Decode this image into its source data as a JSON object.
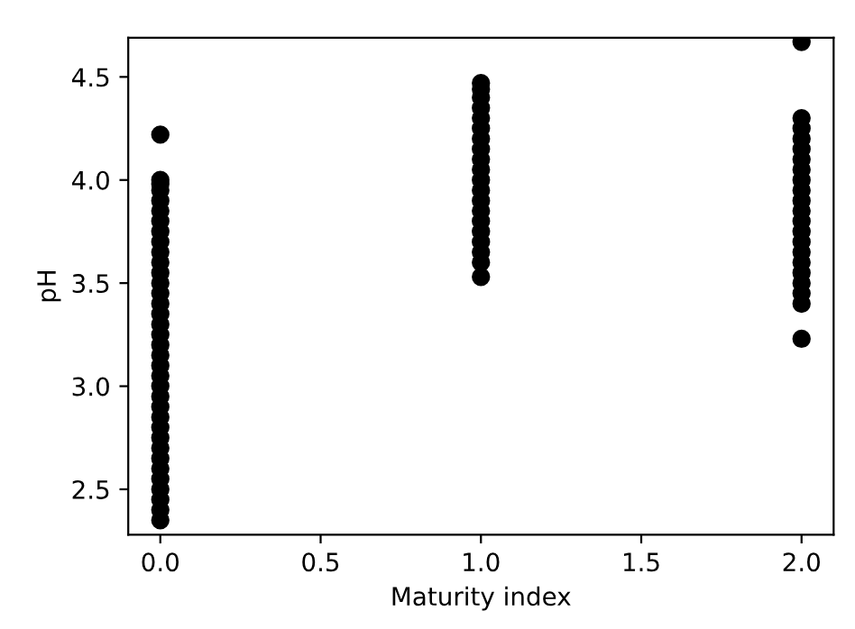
{
  "chart_data": {
    "type": "scatter",
    "xlabel": "Maturity index",
    "ylabel": "pH",
    "xlim": [
      -0.1,
      2.1
    ],
    "ylim": [
      2.28,
      4.69
    ],
    "xticks": [
      {
        "value": 0,
        "label": "0.0"
      },
      {
        "value": 0.5,
        "label": "0.5"
      },
      {
        "value": 1,
        "label": "1.0"
      },
      {
        "value": 1.5,
        "label": "1.5"
      },
      {
        "value": 2,
        "label": "2.0"
      }
    ],
    "yticks": [
      {
        "value": 2.5,
        "label": "2.5"
      },
      {
        "value": 3,
        "label": "3.0"
      },
      {
        "value": 3.5,
        "label": "3.5"
      },
      {
        "value": 4,
        "label": "4.0"
      },
      {
        "value": 4.5,
        "label": "4.5"
      }
    ],
    "marker": "circle",
    "grid": false,
    "legend": false,
    "series": [
      {
        "color": "#000000",
        "x": [
          0,
          0,
          0,
          0,
          0,
          0,
          0,
          0,
          0,
          0,
          0,
          0,
          0,
          0,
          0,
          0,
          0,
          0,
          0,
          0,
          0,
          0,
          0,
          0,
          0,
          0,
          0,
          0,
          0,
          0,
          0,
          0,
          0,
          0,
          0,
          0,
          1,
          1,
          1,
          1,
          1,
          1,
          1,
          1,
          1,
          1,
          1,
          1,
          1,
          1,
          1,
          1,
          1,
          1,
          1,
          1,
          2,
          2,
          2,
          2,
          2,
          2,
          2,
          2,
          2,
          2,
          2,
          2,
          2,
          2,
          2,
          2,
          2,
          2,
          2,
          2,
          2
        ],
        "values": [
          2.35,
          2.4,
          2.45,
          2.5,
          2.55,
          2.6,
          2.65,
          2.7,
          2.75,
          2.8,
          2.85,
          2.9,
          2.95,
          3.0,
          3.05,
          3.1,
          3.15,
          3.2,
          3.25,
          3.3,
          3.35,
          3.4,
          3.45,
          3.5,
          3.55,
          3.6,
          3.65,
          3.7,
          3.75,
          3.8,
          3.85,
          3.9,
          3.95,
          3.98,
          4.0,
          4.22,
          3.53,
          3.6,
          3.65,
          3.7,
          3.75,
          3.8,
          3.85,
          3.9,
          3.95,
          4.0,
          4.05,
          4.1,
          4.15,
          4.2,
          4.25,
          4.3,
          4.35,
          4.4,
          4.44,
          4.47,
          3.23,
          3.4,
          3.45,
          3.5,
          3.55,
          3.6,
          3.65,
          3.7,
          3.75,
          3.8,
          3.85,
          3.9,
          3.95,
          4.0,
          4.05,
          4.1,
          4.15,
          4.2,
          4.25,
          4.3,
          4.67
        ]
      }
    ]
  }
}
